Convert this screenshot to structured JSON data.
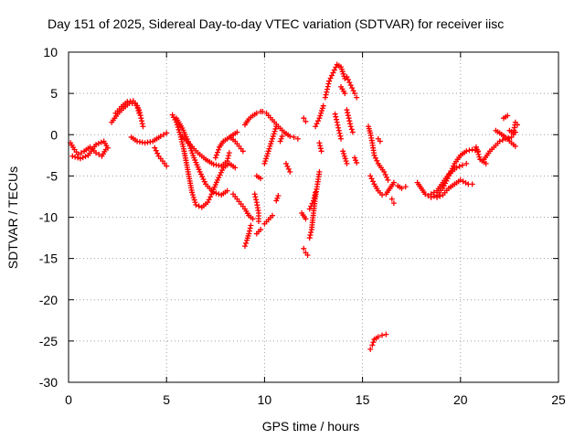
{
  "chart_data": {
    "type": "scatter",
    "title": "Day 151 of 2025, Sidereal Day-to-day VTEC variation (SDTVAR) for receiver iisc",
    "xlabel": "GPS time / hours",
    "ylabel": "SDTVAR / TECUs",
    "xlim": [
      0,
      25
    ],
    "ylim": [
      -30,
      10
    ],
    "x_ticks": [
      0,
      5,
      10,
      15,
      20,
      25
    ],
    "y_ticks": [
      -30,
      -25,
      -20,
      -15,
      -10,
      -5,
      0,
      5,
      10
    ],
    "x_tick_labels": [
      "0",
      "5",
      "10",
      "15",
      "20",
      "25"
    ],
    "y_tick_labels": [
      "-30",
      "-25",
      "-20",
      "-15",
      "-10",
      "-5",
      "0",
      "5",
      "10"
    ],
    "grid": true,
    "marker": "+",
    "color": "#ff0000",
    "series": [
      {
        "name": "arc-01",
        "points": [
          [
            0.1,
            -1.0
          ],
          [
            0.3,
            -1.8
          ],
          [
            0.5,
            -2.4
          ],
          [
            0.8,
            -2.0
          ],
          [
            1.1,
            -1.5
          ],
          [
            1.4,
            -2.2
          ],
          [
            1.7,
            -2.6
          ],
          [
            1.9,
            -1.8
          ]
        ]
      },
      {
        "name": "arc-02",
        "points": [
          [
            0.2,
            -2.6
          ],
          [
            0.6,
            -2.9
          ],
          [
            1.0,
            -2.5
          ],
          [
            1.4,
            -1.2
          ],
          [
            1.8,
            -0.8
          ],
          [
            2.0,
            -1.6
          ]
        ]
      },
      {
        "name": "arc-03",
        "points": [
          [
            2.2,
            1.5
          ],
          [
            2.5,
            2.5
          ],
          [
            2.8,
            3.2
          ],
          [
            3.1,
            3.8
          ],
          [
            3.4,
            3.8
          ],
          [
            3.6,
            3.0
          ],
          [
            3.7,
            2.0
          ],
          [
            3.8,
            1.0
          ]
        ]
      },
      {
        "name": "arc-04",
        "points": [
          [
            2.4,
            2.6
          ],
          [
            2.7,
            3.4
          ],
          [
            3.0,
            4.0
          ],
          [
            3.3,
            4.1
          ],
          [
            3.5,
            3.5
          ],
          [
            3.6,
            2.6
          ]
        ]
      },
      {
        "name": "arc-05",
        "points": [
          [
            3.2,
            -0.3
          ],
          [
            3.5,
            -0.8
          ],
          [
            3.9,
            -1.0
          ],
          [
            4.3,
            -0.8
          ],
          [
            4.7,
            -0.2
          ],
          [
            5.0,
            0.2
          ]
        ]
      },
      {
        "name": "arc-06",
        "points": [
          [
            4.4,
            -1.6
          ],
          [
            4.6,
            -2.6
          ],
          [
            4.8,
            -3.2
          ],
          [
            5.0,
            -3.8
          ]
        ]
      },
      {
        "name": "arc-07",
        "points": [
          [
            5.3,
            2.4
          ],
          [
            5.5,
            1.5
          ],
          [
            5.7,
            0.0
          ],
          [
            5.9,
            -2.0
          ],
          [
            6.1,
            -4.5
          ],
          [
            6.3,
            -7.0
          ],
          [
            6.5,
            -8.5
          ],
          [
            6.8,
            -8.8
          ],
          [
            7.1,
            -8.2
          ],
          [
            7.3,
            -7.2
          ],
          [
            7.6,
            -5.5
          ],
          [
            7.9,
            -4.0
          ],
          [
            8.2,
            -3.5
          ],
          [
            8.5,
            -4.0
          ]
        ]
      },
      {
        "name": "arc-08",
        "points": [
          [
            5.5,
            2.0
          ],
          [
            5.8,
            0.8
          ],
          [
            6.1,
            -0.8
          ],
          [
            6.4,
            -2.8
          ],
          [
            6.7,
            -4.5
          ],
          [
            7.0,
            -6.0
          ],
          [
            7.4,
            -7.0
          ],
          [
            7.8,
            -7.3
          ],
          [
            8.1,
            -6.8
          ]
        ]
      },
      {
        "name": "arc-09",
        "points": [
          [
            5.8,
            -0.2
          ],
          [
            6.2,
            -1.2
          ],
          [
            6.6,
            -2.2
          ],
          [
            7.0,
            -3.0
          ],
          [
            7.4,
            -3.6
          ],
          [
            7.8,
            -3.8
          ],
          [
            8.1,
            -3.2
          ],
          [
            8.2,
            -2.2
          ]
        ]
      },
      {
        "name": "arc-10",
        "points": [
          [
            7.5,
            -2.8
          ],
          [
            7.7,
            -1.5
          ],
          [
            7.9,
            -0.8
          ],
          [
            8.1,
            -0.5
          ],
          [
            8.4,
            0.0
          ],
          [
            8.6,
            0.3
          ]
        ]
      },
      {
        "name": "arc-11",
        "points": [
          [
            8.4,
            -7.2
          ],
          [
            8.6,
            -7.8
          ],
          [
            8.8,
            -8.4
          ],
          [
            9.0,
            -9.0
          ],
          [
            9.2,
            -9.8
          ],
          [
            9.4,
            -10.2
          ]
        ]
      },
      {
        "name": "arc-12",
        "points": [
          [
            9.0,
            -13.5
          ],
          [
            9.1,
            -12.8
          ],
          [
            9.2,
            -12.0
          ],
          [
            9.3,
            -11.0
          ]
        ]
      },
      {
        "name": "arc-13",
        "points": [
          [
            9.5,
            -7.2
          ],
          [
            9.6,
            -8.2
          ],
          [
            9.7,
            -9.5
          ],
          [
            9.7,
            -10.5
          ]
        ]
      },
      {
        "name": "arc-14",
        "points": [
          [
            9.6,
            -12.0
          ],
          [
            9.8,
            -11.5
          ]
        ]
      },
      {
        "name": "arc-15",
        "points": [
          [
            8.3,
            -0.4
          ],
          [
            8.5,
            -0.8
          ],
          [
            8.7,
            -1.4
          ],
          [
            8.9,
            -2.0
          ]
        ]
      },
      {
        "name": "arc-16",
        "points": [
          [
            9.0,
            1.2
          ],
          [
            9.2,
            1.9
          ],
          [
            9.4,
            2.3
          ],
          [
            9.6,
            2.6
          ],
          [
            9.8,
            2.8
          ]
        ]
      },
      {
        "name": "arc-17",
        "points": [
          [
            9.6,
            -5.0
          ],
          [
            9.8,
            -5.3
          ]
        ]
      },
      {
        "name": "arc-18",
        "points": [
          [
            9.9,
            2.8
          ],
          [
            10.1,
            2.6
          ],
          [
            10.4,
            1.8
          ],
          [
            10.7,
            1.0
          ],
          [
            11.0,
            0.3
          ],
          [
            11.3,
            -0.2
          ]
        ]
      },
      {
        "name": "arc-19",
        "points": [
          [
            10.0,
            -3.5
          ],
          [
            10.2,
            -2.0
          ],
          [
            10.4,
            -0.5
          ],
          [
            10.6,
            1.0
          ]
        ]
      },
      {
        "name": "arc-20",
        "points": [
          [
            10.0,
            -10.8
          ],
          [
            10.2,
            -10.3
          ],
          [
            10.4,
            -9.8
          ]
        ]
      },
      {
        "name": "arc-21",
        "points": [
          [
            10.6,
            -8.0
          ],
          [
            10.7,
            -7.4
          ]
        ]
      },
      {
        "name": "arc-22",
        "points": [
          [
            10.8,
            -0.8
          ],
          [
            10.9,
            -0.2
          ]
        ]
      },
      {
        "name": "arc-23",
        "points": [
          [
            11.1,
            -3.5
          ],
          [
            11.3,
            -4.5
          ]
        ]
      },
      {
        "name": "arc-24",
        "points": [
          [
            11.5,
            -0.3
          ],
          [
            11.7,
            -0.5
          ]
        ]
      },
      {
        "name": "arc-25",
        "points": [
          [
            12.0,
            2.0
          ],
          [
            12.1,
            1.6
          ]
        ]
      },
      {
        "name": "arc-26",
        "points": [
          [
            11.9,
            -9.5
          ],
          [
            12.1,
            -10.2
          ]
        ]
      },
      {
        "name": "arc-27",
        "points": [
          [
            12.0,
            -13.8
          ],
          [
            12.1,
            -14.3
          ],
          [
            12.2,
            -14.6
          ]
        ]
      },
      {
        "name": "arc-28",
        "points": [
          [
            12.3,
            -12.5
          ],
          [
            12.4,
            -11.5
          ],
          [
            12.5,
            -9.5
          ],
          [
            12.6,
            -7.5
          ],
          [
            12.7,
            -6.0
          ],
          [
            12.8,
            -4.5
          ]
        ]
      },
      {
        "name": "arc-29",
        "points": [
          [
            12.3,
            -9.0
          ],
          [
            12.5,
            -8.0
          ],
          [
            12.6,
            -7.0
          ]
        ]
      },
      {
        "name": "arc-30",
        "points": [
          [
            12.6,
            1.0
          ],
          [
            12.8,
            2.0
          ],
          [
            13.0,
            3.5
          ]
        ]
      },
      {
        "name": "arc-31",
        "points": [
          [
            12.8,
            -1.0
          ],
          [
            12.9,
            -2.0
          ]
        ]
      },
      {
        "name": "arc-32",
        "points": [
          [
            13.1,
            4.5
          ],
          [
            13.2,
            5.5
          ],
          [
            13.3,
            6.5
          ]
        ]
      },
      {
        "name": "arc-33",
        "points": [
          [
            13.3,
            6.5
          ],
          [
            13.5,
            7.5
          ],
          [
            13.7,
            8.5
          ],
          [
            13.9,
            8.2
          ],
          [
            14.1,
            6.8
          ]
        ]
      },
      {
        "name": "arc-34",
        "points": [
          [
            13.6,
            2.5
          ],
          [
            13.7,
            1.5
          ],
          [
            13.8,
            0.5
          ],
          [
            13.9,
            -0.5
          ]
        ]
      },
      {
        "name": "arc-35",
        "points": [
          [
            13.9,
            5.8
          ],
          [
            14.1,
            5.0
          ]
        ]
      },
      {
        "name": "arc-36",
        "points": [
          [
            14.2,
            3.0
          ],
          [
            14.3,
            2.0
          ],
          [
            14.4,
            1.0
          ],
          [
            14.5,
            0.3
          ]
        ]
      },
      {
        "name": "arc-37",
        "points": [
          [
            14.2,
            7.0
          ],
          [
            14.4,
            6.0
          ],
          [
            14.6,
            5.0
          ],
          [
            14.7,
            4.5
          ]
        ]
      },
      {
        "name": "arc-38",
        "points": [
          [
            14.0,
            -2.0
          ],
          [
            14.2,
            -3.5
          ]
        ]
      },
      {
        "name": "arc-39",
        "points": [
          [
            14.6,
            -2.8
          ],
          [
            14.7,
            -3.4
          ]
        ]
      },
      {
        "name": "arc-40",
        "points": [
          [
            15.3,
            1.0
          ],
          [
            15.4,
            0.2
          ],
          [
            15.5,
            -1.0
          ],
          [
            15.6,
            -2.5
          ],
          [
            15.8,
            -3.5
          ],
          [
            16.1,
            -4.5
          ],
          [
            16.3,
            -5.5
          ]
        ]
      },
      {
        "name": "arc-41",
        "points": [
          [
            15.4,
            -5.0
          ],
          [
            15.6,
            -6.0
          ],
          [
            15.8,
            -6.8
          ],
          [
            16.0,
            -7.3
          ],
          [
            16.2,
            -7.2
          ],
          [
            16.4,
            -6.5
          ],
          [
            16.6,
            -5.8
          ]
        ]
      },
      {
        "name": "arc-42",
        "points": [
          [
            15.8,
            -0.5
          ],
          [
            15.9,
            -0.8
          ]
        ]
      },
      {
        "name": "arc-43",
        "points": [
          [
            16.5,
            -7.8
          ],
          [
            16.6,
            -8.3
          ]
        ]
      },
      {
        "name": "arc-44",
        "points": [
          [
            16.8,
            -6.2
          ],
          [
            17.0,
            -6.5
          ],
          [
            17.2,
            -6.3
          ]
        ]
      },
      {
        "name": "arc-45",
        "points": [
          [
            15.4,
            -26.0
          ],
          [
            15.5,
            -25.5
          ],
          [
            15.6,
            -24.8
          ],
          [
            15.8,
            -24.5
          ],
          [
            16.0,
            -24.3
          ],
          [
            16.2,
            -24.2
          ]
        ]
      },
      {
        "name": "arc-46",
        "points": [
          [
            17.8,
            -5.8
          ],
          [
            18.0,
            -6.5
          ],
          [
            18.2,
            -7.2
          ],
          [
            18.5,
            -7.6
          ],
          [
            18.8,
            -7.3
          ],
          [
            19.1,
            -6.5
          ],
          [
            19.4,
            -5.0
          ],
          [
            19.7,
            -3.5
          ],
          [
            20.0,
            -2.5
          ],
          [
            20.3,
            -2.0
          ],
          [
            20.6,
            -1.8
          ],
          [
            20.9,
            -2.0
          ]
        ]
      },
      {
        "name": "arc-47",
        "points": [
          [
            18.5,
            -7.2
          ],
          [
            18.8,
            -6.8
          ],
          [
            19.1,
            -5.8
          ],
          [
            19.4,
            -4.8
          ],
          [
            19.8,
            -4.0
          ],
          [
            20.1,
            -3.7
          ],
          [
            20.3,
            -3.5
          ]
        ]
      },
      {
        "name": "arc-48",
        "points": [
          [
            18.8,
            -7.6
          ],
          [
            19.1,
            -7.3
          ],
          [
            19.4,
            -6.5
          ],
          [
            19.7,
            -6.0
          ],
          [
            20.0,
            -5.5
          ],
          [
            20.4,
            -6.0
          ],
          [
            20.6,
            -6.0
          ]
        ]
      },
      {
        "name": "arc-49",
        "points": [
          [
            20.8,
            -1.5
          ],
          [
            21.0,
            -3.0
          ],
          [
            21.3,
            -3.5
          ]
        ]
      },
      {
        "name": "arc-50",
        "points": [
          [
            21.2,
            -3.0
          ],
          [
            21.5,
            -2.0
          ],
          [
            21.8,
            -1.3
          ],
          [
            22.0,
            -0.8
          ],
          [
            22.3,
            -0.5
          ],
          [
            22.6,
            -0.3
          ],
          [
            22.8,
            0.3
          ]
        ]
      },
      {
        "name": "arc-51",
        "points": [
          [
            21.8,
            0.5
          ],
          [
            22.0,
            0.2
          ],
          [
            22.3,
            -0.3
          ],
          [
            22.6,
            -1.0
          ],
          [
            22.8,
            -1.4
          ]
        ]
      },
      {
        "name": "arc-52",
        "points": [
          [
            22.2,
            2.0
          ],
          [
            22.4,
            2.3
          ]
        ]
      },
      {
        "name": "arc-53",
        "points": [
          [
            22.5,
            0.5
          ],
          [
            22.7,
            0.2
          ],
          [
            22.8,
            1.5
          ],
          [
            22.9,
            1.2
          ]
        ]
      }
    ]
  }
}
